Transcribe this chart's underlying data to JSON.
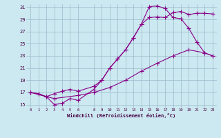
{
  "xlabel": "Windchill (Refroidissement éolien,°C)",
  "background_color": "#cce8f0",
  "line_color": "#880088",
  "grid_color": "#99bbcc",
  "xlim": [
    -0.5,
    23.5
  ],
  "ylim": [
    14.5,
    31.5
  ],
  "yticks": [
    15,
    17,
    19,
    21,
    23,
    25,
    27,
    29,
    31
  ],
  "xticks": [
    0,
    1,
    2,
    3,
    4,
    5,
    6,
    8,
    9,
    10,
    11,
    12,
    13,
    14,
    15,
    16,
    17,
    18,
    19,
    20,
    21,
    22,
    23
  ],
  "line1_x": [
    0,
    1,
    2,
    3,
    4,
    5,
    6,
    8,
    9,
    10,
    11,
    12,
    13,
    14,
    15,
    16,
    17,
    18,
    19,
    20,
    21,
    22,
    23
  ],
  "line1_y": [
    17.0,
    16.8,
    16.3,
    16.8,
    17.2,
    17.5,
    17.2,
    18.0,
    19.0,
    21.0,
    22.5,
    24.0,
    26.0,
    28.2,
    29.3,
    29.4,
    29.3,
    30.1,
    30.3,
    29.8,
    30.0,
    30.0,
    29.9
  ],
  "line2_x": [
    0,
    1,
    2,
    3,
    4,
    5,
    6,
    8,
    9,
    10,
    11,
    12,
    13,
    14,
    15,
    16,
    17,
    18,
    19,
    20,
    21,
    22,
    23
  ],
  "line2_y": [
    17.0,
    16.8,
    16.3,
    15.0,
    15.2,
    16.0,
    15.7,
    17.5,
    19.0,
    21.0,
    22.5,
    24.0,
    26.0,
    28.2,
    31.1,
    31.2,
    30.8,
    29.3,
    29.1,
    27.5,
    25.3,
    23.5,
    23.0
  ],
  "line3_x": [
    0,
    2,
    3,
    6,
    8,
    10,
    12,
    14,
    16,
    18,
    20,
    22,
    23
  ],
  "line3_y": [
    17.0,
    16.3,
    16.0,
    16.5,
    17.0,
    17.8,
    19.0,
    20.5,
    21.8,
    23.0,
    24.0,
    23.5,
    23.0
  ]
}
